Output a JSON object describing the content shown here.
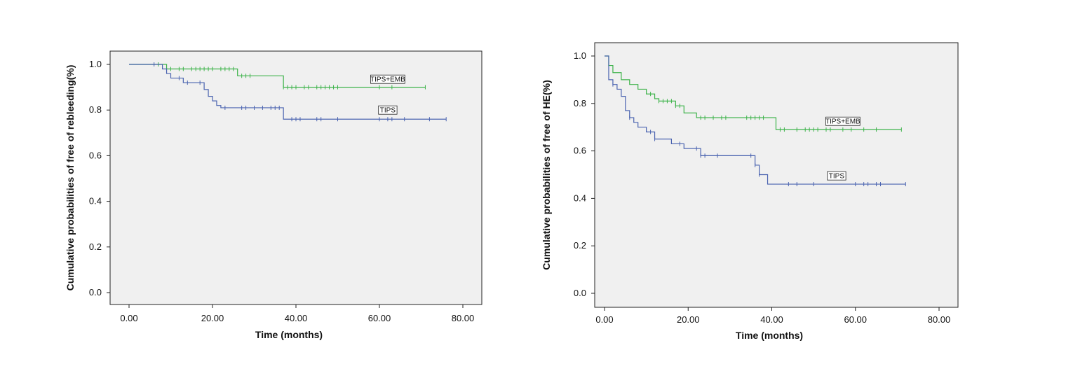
{
  "chart_data": [
    {
      "type": "line",
      "step": true,
      "xlabel": "Time (months)",
      "ylabel": "Cumulative probabilities of free of rebleeding(%)",
      "xlim": [
        0,
        80
      ],
      "ylim": [
        0,
        1.0
      ],
      "xticks": [
        "0.00",
        "20.00",
        "40.00",
        "60.00",
        "80.00"
      ],
      "yticks": [
        "0.0",
        "0.2",
        "0.4",
        "0.6",
        "0.8",
        "1.0"
      ],
      "grid": false,
      "background": "#f0f0f0",
      "series": [
        {
          "name": "TIPS+EMB",
          "color": "#3db34a",
          "steps": [
            [
              0,
              1.0
            ],
            [
              9,
              0.98
            ],
            [
              26,
              0.95
            ],
            [
              37,
              0.9
            ],
            [
              71,
              0.9
            ]
          ],
          "censored": [
            7,
            10,
            12,
            13,
            15,
            16,
            17,
            18,
            19,
            20,
            22,
            23,
            24,
            25,
            27,
            28,
            29,
            37,
            38,
            39,
            40,
            42,
            43,
            45,
            46,
            47,
            48,
            49,
            50,
            60,
            63,
            71
          ]
        },
        {
          "name": "TIPS",
          "color": "#4a63b0",
          "steps": [
            [
              0,
              1.0
            ],
            [
              8,
              0.98
            ],
            [
              9,
              0.96
            ],
            [
              10,
              0.94
            ],
            [
              13,
              0.92
            ],
            [
              18,
              0.89
            ],
            [
              19,
              0.86
            ],
            [
              20,
              0.84
            ],
            [
              21,
              0.82
            ],
            [
              22,
              0.81
            ],
            [
              37,
              0.76
            ],
            [
              76,
              0.76
            ]
          ],
          "censored": [
            6,
            12,
            14,
            17,
            23,
            27,
            28,
            30,
            32,
            34,
            35,
            36,
            39,
            40,
            41,
            45,
            46,
            50,
            60,
            62,
            63,
            66,
            72,
            76
          ]
        }
      ],
      "annotations": [
        {
          "text": "TIPS+EMB",
          "x": 62,
          "y": 0.935
        },
        {
          "text": "TIPS",
          "x": 62,
          "y": 0.8
        }
      ]
    },
    {
      "type": "line",
      "step": true,
      "xlabel": "Time (months)",
      "ylabel": "Cumulative probabilities of free of HE(%)",
      "xlim": [
        0,
        80
      ],
      "ylim": [
        0,
        1.0
      ],
      "xticks": [
        "0.00",
        "20.00",
        "40.00",
        "60.00",
        "80.00"
      ],
      "yticks": [
        "0.0",
        "0.2",
        "0.4",
        "0.6",
        "0.8",
        "1.0"
      ],
      "grid": false,
      "background": "#f0f0f0",
      "series": [
        {
          "name": "TIPS+EMB",
          "color": "#3db34a",
          "steps": [
            [
              0,
              1.0
            ],
            [
              1,
              0.96
            ],
            [
              2,
              0.93
            ],
            [
              4,
              0.9
            ],
            [
              6,
              0.88
            ],
            [
              8,
              0.86
            ],
            [
              10,
              0.84
            ],
            [
              12,
              0.82
            ],
            [
              13,
              0.81
            ],
            [
              17,
              0.79
            ],
            [
              19,
              0.76
            ],
            [
              22,
              0.74
            ],
            [
              41,
              0.69
            ],
            [
              71,
              0.69
            ]
          ],
          "censored": [
            11,
            13,
            14,
            15,
            16,
            17,
            18,
            23,
            24,
            26,
            28,
            29,
            34,
            35,
            36,
            37,
            38,
            42,
            43,
            46,
            48,
            49,
            50,
            51,
            53,
            54,
            57,
            59,
            62,
            65,
            71
          ]
        },
        {
          "name": "TIPS",
          "color": "#4a63b0",
          "steps": [
            [
              0,
              1.0
            ],
            [
              1,
              0.9
            ],
            [
              2,
              0.88
            ],
            [
              3,
              0.86
            ],
            [
              4,
              0.83
            ],
            [
              5,
              0.77
            ],
            [
              6,
              0.74
            ],
            [
              7,
              0.72
            ],
            [
              8,
              0.7
            ],
            [
              10,
              0.68
            ],
            [
              12,
              0.65
            ],
            [
              16,
              0.63
            ],
            [
              19,
              0.61
            ],
            [
              23,
              0.58
            ],
            [
              36,
              0.54
            ],
            [
              37,
              0.5
            ],
            [
              39,
              0.46
            ],
            [
              72,
              0.46
            ]
          ],
          "censored": [
            2,
            6,
            11,
            12,
            18,
            22,
            23,
            24,
            27,
            35,
            36,
            37,
            44,
            46,
            50,
            60,
            62,
            63,
            65,
            66,
            72
          ]
        }
      ],
      "annotations": [
        {
          "text": "TIPS+EMB",
          "x": 57,
          "y": 0.725
        },
        {
          "text": "TIPS",
          "x": 55.5,
          "y": 0.495
        }
      ]
    }
  ]
}
